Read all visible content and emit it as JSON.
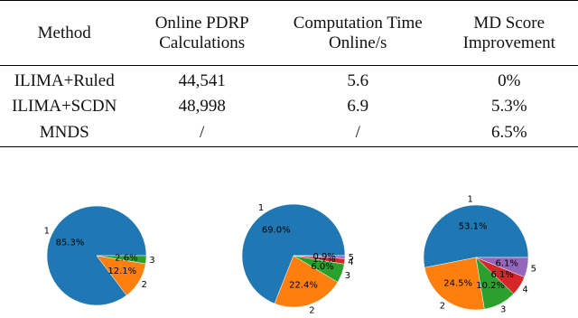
{
  "table": {
    "header": [
      "Method",
      "Online PDRP Calculations",
      "Computation Time Online/s",
      "MD Score Improvement"
    ],
    "rows": [
      [
        "ILIMA+Ruled",
        "44,541",
        "5.6",
        "0%"
      ],
      [
        "ILIMA+SCDN",
        "48,998",
        "6.9",
        "5.3%"
      ],
      [
        "MNDS",
        "/",
        "/",
        "6.5%"
      ]
    ]
  },
  "chart_data": [
    {
      "type": "pie",
      "categories": [
        "1",
        "2",
        "3"
      ],
      "values": [
        85.3,
        12.1,
        2.6
      ],
      "value_labels": [
        "85.3%",
        "12.1%",
        "2.6%"
      ],
      "colors": [
        "#1f77b4",
        "#ff7f0e",
        "#2ca02c"
      ]
    },
    {
      "type": "pie",
      "categories": [
        "1",
        "2",
        "3",
        "4",
        "5"
      ],
      "values": [
        69.0,
        22.4,
        6.0,
        1.7,
        0.9
      ],
      "value_labels": [
        "69.0%",
        "22.4%",
        "6.0%",
        "1.7%",
        "0.9%"
      ],
      "colors": [
        "#1f77b4",
        "#ff7f0e",
        "#2ca02c",
        "#d62728",
        "#9467bd"
      ]
    },
    {
      "type": "pie",
      "categories": [
        "1",
        "2",
        "3",
        "4",
        "5"
      ],
      "values": [
        53.1,
        24.5,
        10.2,
        6.1,
        6.1
      ],
      "value_labels": [
        "53.1%",
        "24.5%",
        "10.2%",
        "6.1%",
        "6.1%"
      ],
      "colors": [
        "#1f77b4",
        "#ff7f0e",
        "#2ca02c",
        "#d62728",
        "#9467bd"
      ]
    }
  ]
}
